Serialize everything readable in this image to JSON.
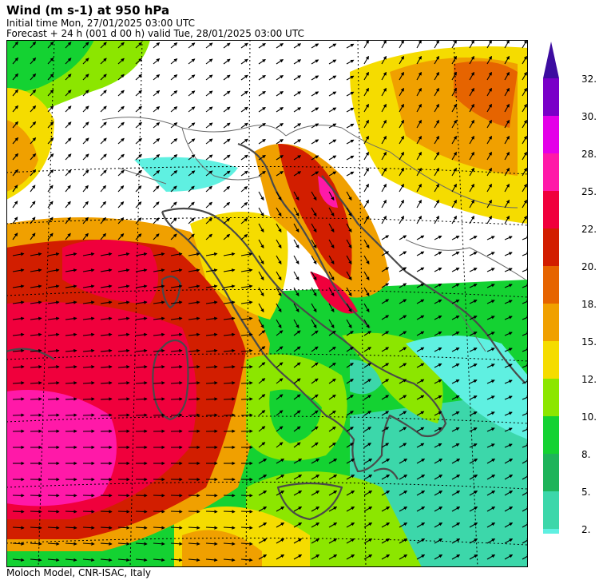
{
  "header": {
    "title": "Wind (m s-1) at 950 hPa",
    "initial_time": "Initial time  Mon, 27/01/2025  03:00 UTC",
    "forecast": "Forecast  +  24 h  (001 d 00 h)  valid Tue, 28/01/2025 03:00 UTC"
  },
  "footer": {
    "credit": "Moloch Model, CNR-ISAC, Italy"
  },
  "legend": {
    "labels": [
      "32.",
      "30.",
      "28.",
      "25.",
      "22.",
      "20.",
      "18.",
      "15.",
      "12.",
      "10.",
      "8.",
      "5.",
      "2."
    ],
    "colors": [
      "#7a00c8",
      "#e400e8",
      "#ff19a8",
      "#f0003c",
      "#d21e00",
      "#e66400",
      "#f0a000",
      "#f5dc00",
      "#8ce600",
      "#14d232",
      "#1eb45a",
      "#3cd7aa",
      "#5ff0e1"
    ]
  },
  "map": {
    "background_color": "#ffffff",
    "coastline_color": "#4a4a4a",
    "region": "Central Mediterranean / Italy"
  }
}
